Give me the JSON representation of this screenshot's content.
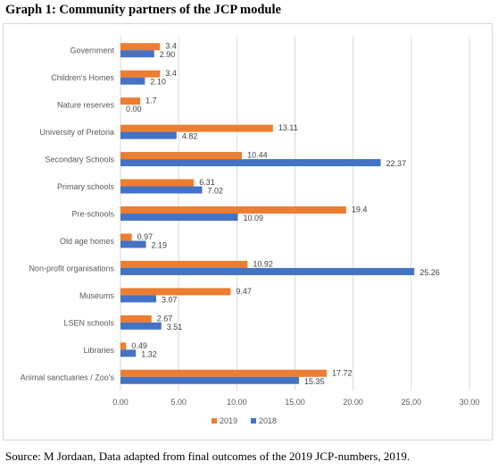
{
  "heading": "Graph 1: Community partners of the JCP module",
  "source": "Source: M Jordaan, Data adapted from final outcomes of the 2019 JCP-numbers, 2019.",
  "chart_data": {
    "type": "bar",
    "orientation": "horizontal",
    "categories": [
      "Government",
      "Children's Homes",
      "Nature reserves",
      "University of Pretoria",
      "Secondary Schools",
      "Primary schools",
      "Pre-schools",
      "Old age homes",
      "Non-profit organisations",
      "Museums",
      "LSEN schools",
      "Libraries",
      "Animal sanctuaries / Zoo's"
    ],
    "series": [
      {
        "name": "2019",
        "color": "#ed7d31",
        "values": [
          3.4,
          3.4,
          1.7,
          13.11,
          10.44,
          6.31,
          19.4,
          0.97,
          10.92,
          9.47,
          2.67,
          0.49,
          17.72
        ],
        "labels": [
          "3.4",
          "3.4",
          "1.7",
          "13.11",
          "10.44",
          "6.31",
          "19.4",
          "0.97",
          "10.92",
          "9.47",
          "2.67",
          "0.49",
          "17.72"
        ]
      },
      {
        "name": "2018",
        "color": "#4472c4",
        "values": [
          2.9,
          2.1,
          0.0,
          4.82,
          22.37,
          7.02,
          10.09,
          2.19,
          25.26,
          3.07,
          3.51,
          1.32,
          15.35
        ],
        "labels": [
          "2.90",
          "2.10",
          "0.00",
          "4.82",
          "22.37",
          "7.02",
          "10.09",
          "2.19",
          "25.26",
          "3.07",
          "3.51",
          "1.32",
          "15.35"
        ]
      }
    ],
    "xlim": [
      0,
      30
    ],
    "xticks": [
      "0.00",
      "5.00",
      "10.00",
      "15.00",
      "20.00",
      "25.00",
      "30.00"
    ],
    "grid": true,
    "legend": "bottom"
  }
}
